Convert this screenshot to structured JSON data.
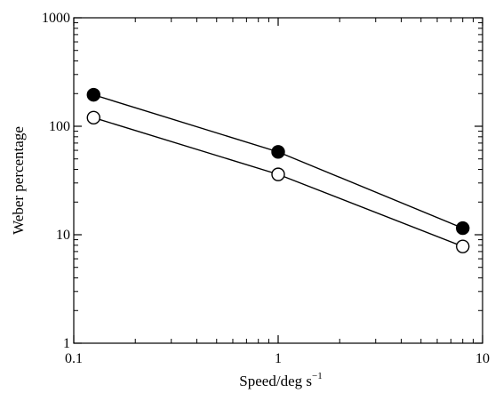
{
  "chart_data": {
    "type": "line",
    "title": "",
    "xlabel": "Speed/deg s",
    "xlabel_superscript": "−1",
    "ylabel": "Weber percentage",
    "x_scale": "log",
    "y_scale": "log",
    "xlim": [
      0.1,
      10
    ],
    "ylim": [
      1,
      1000
    ],
    "x_ticks": [
      "0.1",
      "1",
      "10"
    ],
    "y_ticks": [
      "1",
      "10",
      "100",
      "1000"
    ],
    "grid": false,
    "legend": "none",
    "series": [
      {
        "marker": "filled-circle",
        "color": "#000000",
        "x": [
          0.125,
          1,
          8
        ],
        "y": [
          195,
          58,
          11.5
        ]
      },
      {
        "marker": "open-circle",
        "color": "#000000",
        "x": [
          0.125,
          1,
          8
        ],
        "y": [
          120,
          36,
          7.8
        ]
      }
    ]
  }
}
